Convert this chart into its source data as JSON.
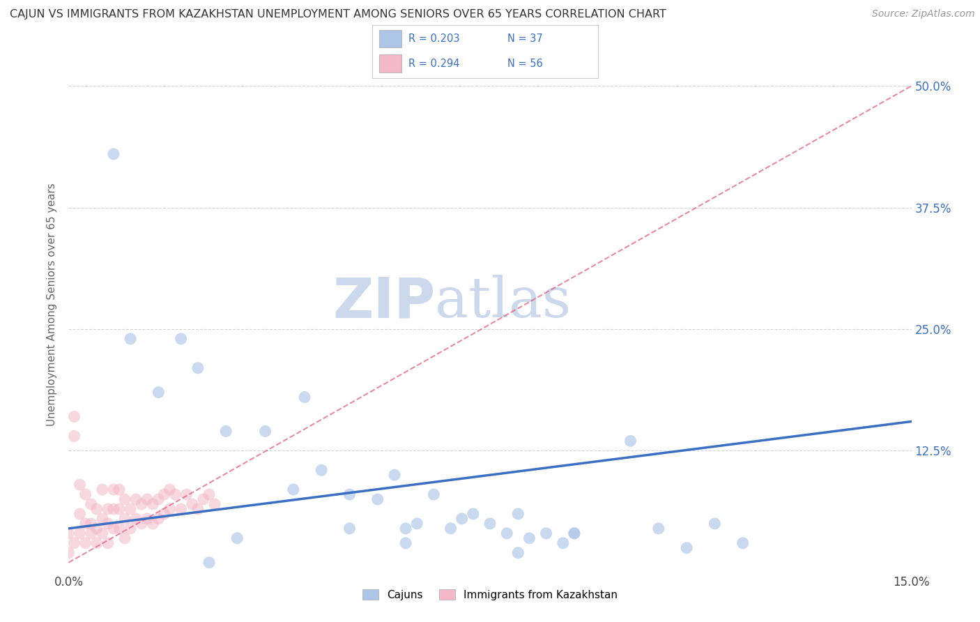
{
  "title": "CAJUN VS IMMIGRANTS FROM KAZAKHSTAN UNEMPLOYMENT AMONG SENIORS OVER 65 YEARS CORRELATION CHART",
  "source": "Source: ZipAtlas.com",
  "ylabel": "Unemployment Among Seniors over 65 years",
  "xlim": [
    0.0,
    0.15
  ],
  "ylim": [
    0.0,
    0.55
  ],
  "ytick_positions_right": [
    0.5,
    0.375,
    0.25,
    0.125,
    0.0
  ],
  "ytick_labels_right": [
    "50.0%",
    "37.5%",
    "25.0%",
    "12.5%",
    ""
  ],
  "legend_cajun_R": "R = 0.203",
  "legend_cajun_N": "N = 37",
  "legend_kaz_R": "R = 0.294",
  "legend_kaz_N": "N = 56",
  "cajun_color": "#adc6e8",
  "kaz_color": "#f4b8c8",
  "cajun_line_color": "#3a6fc4",
  "kaz_line_color": "#e05878",
  "watermark_zip": "ZIP",
  "watermark_atlas": "atlas",
  "watermark_color": "#ccd8ec",
  "background_color": "#ffffff",
  "grid_color": "#d8d8d8",
  "dashed_line_color": "#c8c8c8",
  "cajun_points_x": [
    0.008,
    0.011,
    0.016,
    0.02,
    0.023,
    0.028,
    0.035,
    0.04,
    0.042,
    0.045,
    0.05,
    0.055,
    0.058,
    0.06,
    0.062,
    0.065,
    0.068,
    0.07,
    0.072,
    0.075,
    0.078,
    0.08,
    0.082,
    0.085,
    0.088,
    0.09,
    0.09,
    0.1,
    0.105,
    0.11,
    0.115,
    0.12,
    0.025,
    0.03,
    0.05,
    0.06,
    0.08
  ],
  "cajun_points_y": [
    0.43,
    0.24,
    0.185,
    0.24,
    0.21,
    0.145,
    0.145,
    0.085,
    0.18,
    0.105,
    0.08,
    0.075,
    0.1,
    0.045,
    0.05,
    0.08,
    0.045,
    0.055,
    0.06,
    0.05,
    0.04,
    0.06,
    0.035,
    0.04,
    0.03,
    0.04,
    0.04,
    0.135,
    0.045,
    0.025,
    0.05,
    0.03,
    0.01,
    0.035,
    0.045,
    0.03,
    0.02
  ],
  "kaz_points_x": [
    0.0,
    0.0,
    0.001,
    0.001,
    0.001,
    0.002,
    0.002,
    0.002,
    0.003,
    0.003,
    0.003,
    0.004,
    0.004,
    0.004,
    0.005,
    0.005,
    0.005,
    0.006,
    0.006,
    0.006,
    0.007,
    0.007,
    0.007,
    0.008,
    0.008,
    0.008,
    0.009,
    0.009,
    0.009,
    0.01,
    0.01,
    0.01,
    0.011,
    0.011,
    0.012,
    0.012,
    0.013,
    0.013,
    0.014,
    0.014,
    0.015,
    0.015,
    0.016,
    0.016,
    0.017,
    0.017,
    0.018,
    0.018,
    0.019,
    0.02,
    0.021,
    0.022,
    0.023,
    0.024,
    0.025,
    0.026
  ],
  "kaz_points_y": [
    0.02,
    0.04,
    0.16,
    0.14,
    0.03,
    0.09,
    0.06,
    0.04,
    0.08,
    0.05,
    0.03,
    0.07,
    0.05,
    0.04,
    0.065,
    0.045,
    0.03,
    0.085,
    0.055,
    0.04,
    0.065,
    0.05,
    0.03,
    0.085,
    0.065,
    0.045,
    0.085,
    0.065,
    0.045,
    0.075,
    0.055,
    0.035,
    0.065,
    0.045,
    0.075,
    0.055,
    0.07,
    0.05,
    0.075,
    0.055,
    0.07,
    0.05,
    0.075,
    0.055,
    0.08,
    0.06,
    0.085,
    0.065,
    0.08,
    0.065,
    0.08,
    0.07,
    0.065,
    0.075,
    0.08,
    0.07
  ],
  "cajun_trend_x0": 0.0,
  "cajun_trend_y0": 0.045,
  "cajun_trend_x1": 0.15,
  "cajun_trend_y1": 0.155,
  "kaz_trend_x0": 0.0,
  "kaz_trend_y0": 0.01,
  "kaz_trend_x1": 0.15,
  "kaz_trend_y1": 0.5
}
